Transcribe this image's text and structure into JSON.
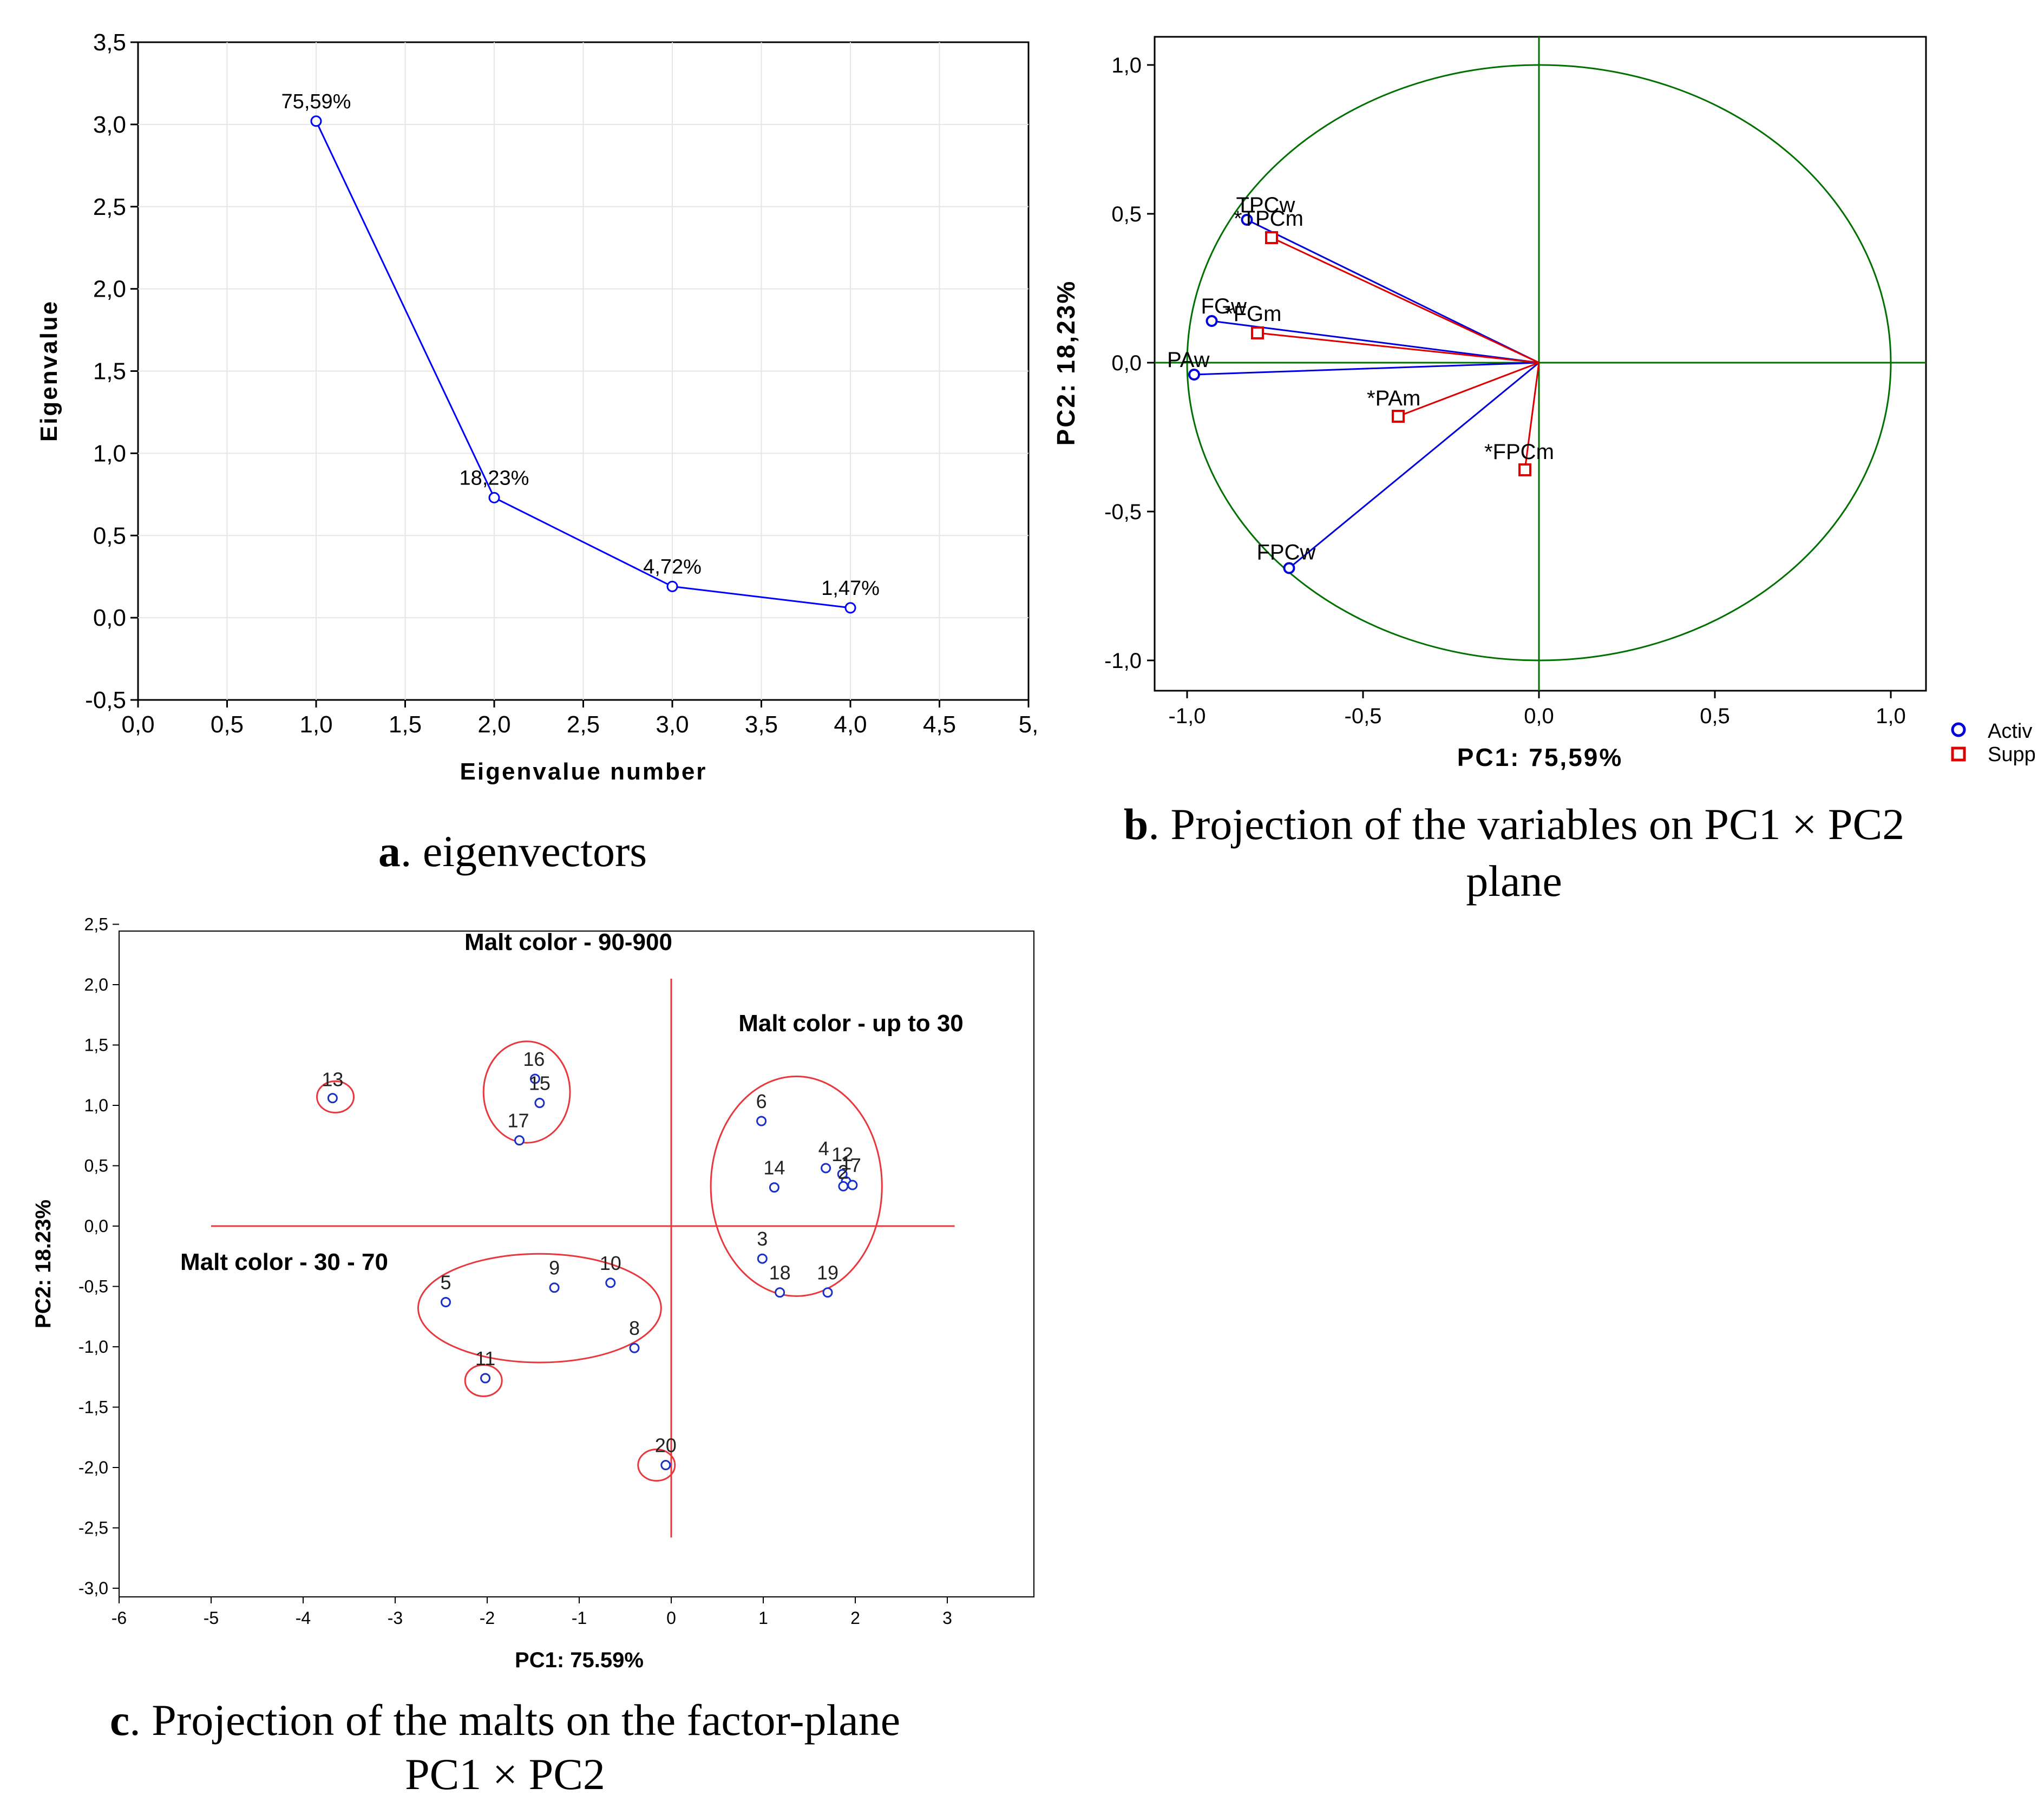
{
  "chart_data": [
    {
      "id": "a",
      "type": "line",
      "xlabel": "Eigenvalue number",
      "ylabel": "Eigenvalue",
      "xlim": [
        0,
        5
      ],
      "ylim": [
        -0.5,
        3.5
      ],
      "xticks": [
        "0,0",
        "0,5",
        "1,0",
        "1,5",
        "2,0",
        "2,5",
        "3,0",
        "3,5",
        "4,0",
        "4,5",
        "5,"
      ],
      "yticks": [
        "-0,5",
        "0,0",
        "0,5",
        "1,0",
        "1,5",
        "2,0",
        "2,5",
        "3,0",
        "3,5"
      ],
      "x": [
        1,
        2,
        3,
        4
      ],
      "y": [
        3.02,
        0.73,
        0.19,
        0.06
      ],
      "point_labels": [
        "75,59%",
        "18,23%",
        "4,72%",
        "1,47%"
      ],
      "line_color": "#0000ff"
    },
    {
      "id": "b",
      "type": "scatter",
      "xlabel": "PC1: 75,59%",
      "ylabel": "PC2: 18,23%",
      "xlim": [
        -1.1,
        1.1
      ],
      "ylim": [
        -1.1,
        1.1
      ],
      "xticks": [
        "-1,0",
        "-0,5",
        "0,0",
        "0,5",
        "1,0"
      ],
      "yticks": [
        "-1,0",
        "-0,5",
        "0,0",
        "0,5",
        "1,0"
      ],
      "circle_color": "#007000",
      "series": [
        {
          "name": "Active",
          "color": "#0000dd",
          "marker": "circle",
          "points": [
            {
              "label": "TPCw",
              "x": -0.83,
              "y": 0.48
            },
            {
              "label": "FGw",
              "x": -0.93,
              "y": 0.14
            },
            {
              "label": "PAw",
              "x": -0.98,
              "y": -0.04
            },
            {
              "label": "FPCw",
              "x": -0.71,
              "y": -0.69
            }
          ]
        },
        {
          "name": "Supp",
          "color": "#dd0000",
          "marker": "square",
          "points": [
            {
              "label": "*TPCm",
              "x": -0.76,
              "y": 0.42
            },
            {
              "label": "*FGm",
              "x": -0.8,
              "y": 0.1
            },
            {
              "label": "*PAm",
              "x": -0.4,
              "y": -0.18
            },
            {
              "label": "*FPCm",
              "x": -0.04,
              "y": -0.36
            }
          ]
        }
      ],
      "legend": [
        "Activ",
        "Supp"
      ]
    },
    {
      "id": "c",
      "type": "scatter",
      "xlabel": "PC1: 75.59%",
      "ylabel": "PC2: 18.23%",
      "xlim": [
        -6,
        4
      ],
      "ylim": [
        -3,
        2.5
      ],
      "xticks": [
        "-6",
        "-5",
        "-4",
        "-3",
        "-2",
        "-1",
        "0",
        "1",
        "2",
        "3"
      ],
      "yticks": [
        "-3,0",
        "-2,5",
        "-2,0",
        "-1,5",
        "-1,0",
        "-0,5",
        "0,0",
        "0,5",
        "1,0",
        "1,5",
        "2,0",
        "2,5"
      ],
      "points": [
        {
          "label": "13",
          "x": -3.68,
          "y": 1.06
        },
        {
          "label": "16",
          "x": -1.48,
          "y": 1.22
        },
        {
          "label": "15",
          "x": -1.43,
          "y": 1.02
        },
        {
          "label": "17",
          "x": -1.65,
          "y": 0.71
        },
        {
          "label": "6",
          "x": 0.98,
          "y": 0.87
        },
        {
          "label": "4",
          "x": 1.68,
          "y": 0.48
        },
        {
          "label": "12",
          "x": 1.86,
          "y": 0.43
        },
        {
          "label": "1",
          "x": 1.9,
          "y": 0.37
        },
        {
          "label": "2",
          "x": 1.87,
          "y": 0.33
        },
        {
          "label": "7",
          "x": 1.97,
          "y": 0.34
        },
        {
          "label": "14",
          "x": 1.12,
          "y": 0.32
        },
        {
          "label": "3",
          "x": 0.99,
          "y": -0.27
        },
        {
          "label": "18",
          "x": 1.18,
          "y": -0.55
        },
        {
          "label": "19",
          "x": 1.7,
          "y": -0.55
        },
        {
          "label": "10",
          "x": -0.66,
          "y": -0.47
        },
        {
          "label": "9",
          "x": -1.27,
          "y": -0.51
        },
        {
          "label": "5",
          "x": -2.45,
          "y": -0.63
        },
        {
          "label": "8",
          "x": -0.4,
          "y": -1.01
        },
        {
          "label": "11",
          "x": -2.02,
          "y": -1.26
        },
        {
          "label": "20",
          "x": -0.06,
          "y": -1.98
        }
      ],
      "annotations": [
        "Malt color - 90-900",
        "Malt color - up to 30",
        "Malt color - 30 - 70"
      ]
    }
  ],
  "captions": {
    "a": {
      "letter": "a",
      "text": ". eigenvectors"
    },
    "b": {
      "letter": "b",
      "text1": ". Projection of the variables on PC1 × PC2",
      "text2": "plane"
    },
    "c": {
      "letter": "c",
      "text1": ". Projection of the malts on the factor-plane",
      "text2": "PC1 × PC2"
    }
  },
  "colors": {
    "blue": "#0000ff",
    "red": "#e8383d",
    "green": "#007000",
    "grid": "#e6e6e6"
  }
}
